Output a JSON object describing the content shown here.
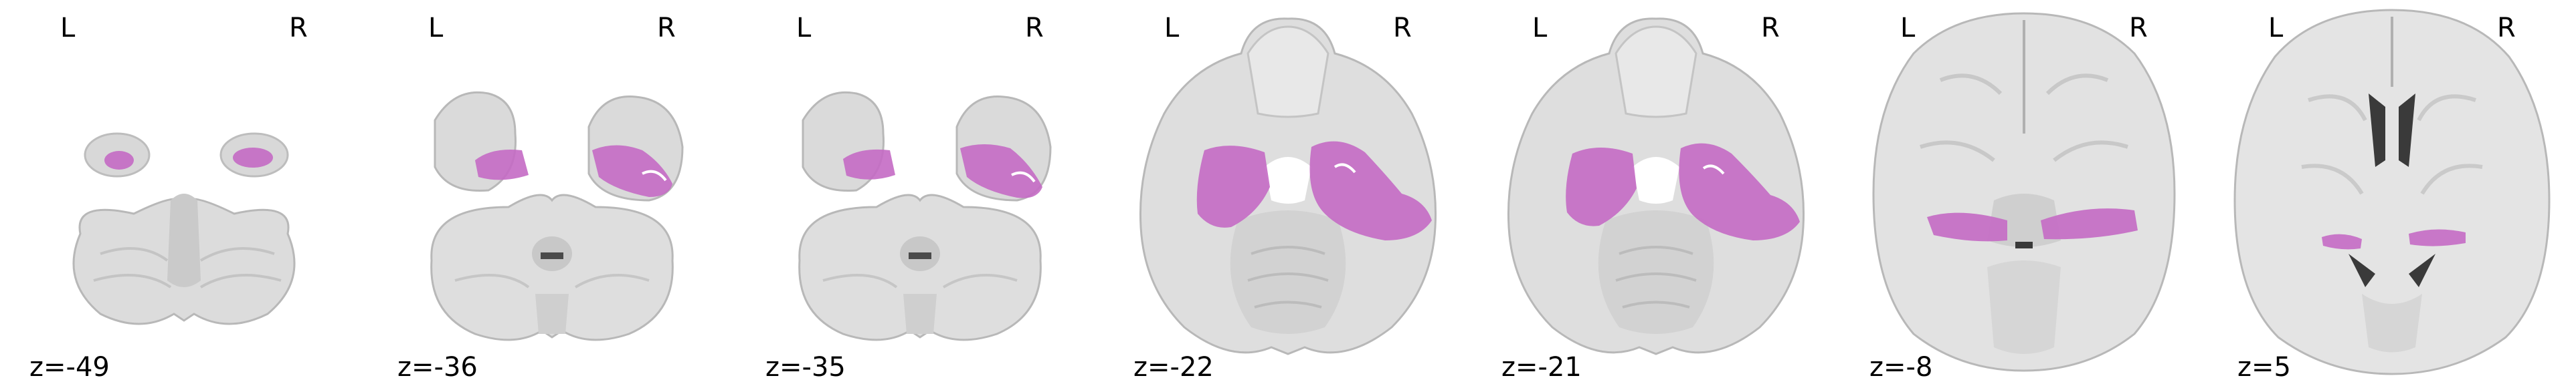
{
  "orientation": {
    "left": "L",
    "right": "R"
  },
  "colors": {
    "background": "#ffffff",
    "tissue_light": "#e7e7e7",
    "tissue_mid": "#cfcfcf",
    "tissue_dark": "#9a9a9a",
    "ventricle": "#3a3a3a",
    "overlay": "#c46ac4"
  },
  "slices": [
    {
      "label": "z=-49",
      "shape": "cerebellum-low",
      "overlay": "small-bilateral"
    },
    {
      "label": "z=-36",
      "shape": "cerebellum-temporal",
      "overlay": "medial-temporal"
    },
    {
      "label": "z=-35",
      "shape": "cerebellum-temporal",
      "overlay": "medial-temporal"
    },
    {
      "label": "z=-22",
      "shape": "midbrain",
      "overlay": "hippocampal-wide"
    },
    {
      "label": "z=-21",
      "shape": "midbrain",
      "overlay": "hippocampal-wide"
    },
    {
      "label": "z=-8",
      "shape": "axial-mid",
      "overlay": "posterior-band"
    },
    {
      "label": "z=5",
      "shape": "axial-high",
      "overlay": "thin-band"
    }
  ]
}
